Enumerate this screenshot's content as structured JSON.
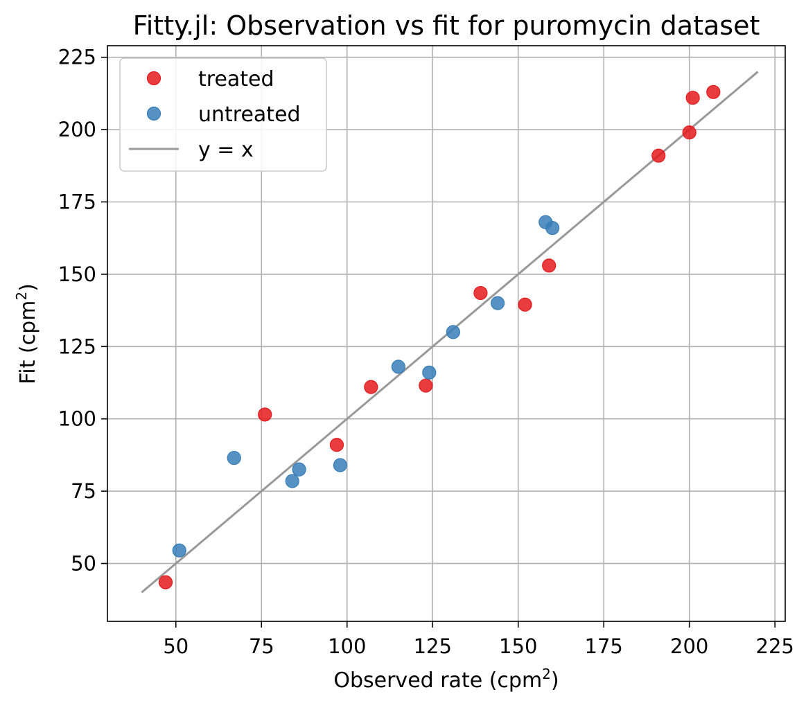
{
  "chart_data": {
    "type": "scatter",
    "title": "Fitty.jl: Observation vs fit for puromycin dataset",
    "xlabel": "Observed rate (cpm",
    "ylabel": "Fit (cpm",
    "unit_superscript": "2",
    "label_close": ")",
    "xlim": [
      30,
      228
    ],
    "ylim": [
      30,
      229
    ],
    "xticks": [
      50,
      75,
      100,
      125,
      150,
      175,
      200,
      225
    ],
    "yticks": [
      50,
      75,
      100,
      125,
      150,
      175,
      200,
      225
    ],
    "grid": true,
    "legend_position": "top-left",
    "series": [
      {
        "name": "treated",
        "kind": "points",
        "color": "#e41a1c",
        "points": [
          [
            47,
            43.5
          ],
          [
            76,
            101.5
          ],
          [
            97,
            91
          ],
          [
            107,
            111
          ],
          [
            123,
            111.5
          ],
          [
            139,
            143.5
          ],
          [
            152,
            139.5
          ],
          [
            159,
            153
          ],
          [
            191,
            191
          ],
          [
            200,
            199
          ],
          [
            201,
            211
          ],
          [
            207,
            213
          ]
        ]
      },
      {
        "name": "untreated",
        "kind": "points",
        "color": "#377eb8",
        "points": [
          [
            51,
            54.5
          ],
          [
            67,
            86.5
          ],
          [
            84,
            78.5
          ],
          [
            86,
            82.5
          ],
          [
            98,
            84
          ],
          [
            115,
            118
          ],
          [
            124,
            116
          ],
          [
            131,
            130
          ],
          [
            144,
            140
          ],
          [
            158,
            168
          ],
          [
            160,
            166
          ]
        ]
      },
      {
        "name": "y = x",
        "kind": "line",
        "color": "#999999",
        "points": [
          [
            40,
            40
          ],
          [
            220,
            220
          ]
        ]
      }
    ]
  }
}
